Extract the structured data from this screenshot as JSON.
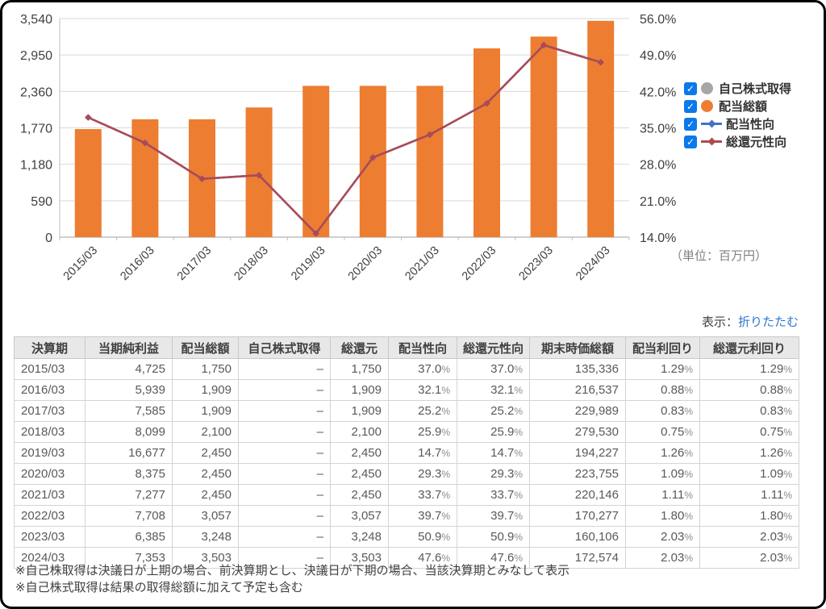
{
  "chart_data": {
    "type": "combo",
    "categories": [
      "2015/03",
      "2016/03",
      "2017/03",
      "2018/03",
      "2019/03",
      "2020/03",
      "2021/03",
      "2022/03",
      "2023/03",
      "2024/03"
    ],
    "series": [
      {
        "name": "自己株式取得",
        "type": "bar",
        "color": "#A6A6A6",
        "values": [
          null,
          null,
          null,
          null,
          null,
          null,
          null,
          null,
          null,
          null
        ]
      },
      {
        "name": "配当総額",
        "type": "bar",
        "color": "#ED7D31",
        "values": [
          1750,
          1909,
          1909,
          2100,
          2450,
          2450,
          2450,
          3057,
          3248,
          3503
        ]
      },
      {
        "name": "配当性向",
        "type": "line",
        "color": "#4472C4",
        "values": [
          37.0,
          32.1,
          25.2,
          25.9,
          14.7,
          29.3,
          33.7,
          39.7,
          50.9,
          47.6
        ]
      },
      {
        "name": "総還元性向",
        "type": "line",
        "color": "#AC4A55",
        "values": [
          37.0,
          32.1,
          25.2,
          25.9,
          14.7,
          29.3,
          33.7,
          39.7,
          50.9,
          47.6
        ]
      }
    ],
    "left_axis": {
      "min": 0,
      "max": 3540,
      "ticks": [
        "0",
        "590",
        "1,180",
        "1,770",
        "2,360",
        "2,950",
        "3,540"
      ]
    },
    "right_axis": {
      "min": 14,
      "max": 56,
      "ticks": [
        "14.0%",
        "21.0%",
        "28.0%",
        "35.0%",
        "42.0%",
        "49.0%",
        "56.0%"
      ]
    },
    "unit": "（単位：百万円）",
    "grid": true,
    "legend_position": "right"
  },
  "legend": {
    "items": [
      {
        "label": "自己株式取得",
        "symbol": "circle",
        "color": "#A6A6A6",
        "checked": true
      },
      {
        "label": "配当総額",
        "symbol": "circle",
        "color": "#ED7D31",
        "checked": true
      },
      {
        "label": "配当性向",
        "symbol": "line",
        "color": "#4472C4",
        "checked": true
      },
      {
        "label": "総還元性向",
        "symbol": "line",
        "color": "#B0494F",
        "checked": true
      }
    ],
    "checkbox_color": "#0A79EC",
    "check_glyph": "✓"
  },
  "toolbar": {
    "display_label": "表示：",
    "collapse_link": "折りたたむ"
  },
  "table": {
    "headers": [
      "決算期",
      "当期純利益",
      "配当総額",
      "自己株式取得",
      "総還元",
      "配当性向",
      "総還元性向",
      "期末時価総額",
      "配当利回り",
      "総還元利回り"
    ],
    "rows": [
      [
        "2015/03",
        "4,725",
        "1,750",
        "–",
        "1,750",
        "37.0%",
        "37.0%",
        "135,336",
        "1.29%",
        "1.29%"
      ],
      [
        "2016/03",
        "5,939",
        "1,909",
        "–",
        "1,909",
        "32.1%",
        "32.1%",
        "216,537",
        "0.88%",
        "0.88%"
      ],
      [
        "2017/03",
        "7,585",
        "1,909",
        "–",
        "1,909",
        "25.2%",
        "25.2%",
        "229,989",
        "0.83%",
        "0.83%"
      ],
      [
        "2018/03",
        "8,099",
        "2,100",
        "–",
        "2,100",
        "25.9%",
        "25.9%",
        "279,530",
        "0.75%",
        "0.75%"
      ],
      [
        "2019/03",
        "16,677",
        "2,450",
        "–",
        "2,450",
        "14.7%",
        "14.7%",
        "194,227",
        "1.26%",
        "1.26%"
      ],
      [
        "2020/03",
        "8,375",
        "2,450",
        "–",
        "2,450",
        "29.3%",
        "29.3%",
        "223,755",
        "1.09%",
        "1.09%"
      ],
      [
        "2021/03",
        "7,277",
        "2,450",
        "–",
        "2,450",
        "33.7%",
        "33.7%",
        "220,146",
        "1.11%",
        "1.11%"
      ],
      [
        "2022/03",
        "7,708",
        "3,057",
        "–",
        "3,057",
        "39.7%",
        "39.7%",
        "170,277",
        "1.80%",
        "1.80%"
      ],
      [
        "2023/03",
        "6,385",
        "3,248",
        "–",
        "3,248",
        "50.9%",
        "50.9%",
        "160,106",
        "2.03%",
        "2.03%"
      ],
      [
        "2024/03",
        "7,353",
        "3,503",
        "–",
        "3,503",
        "47.6%",
        "47.6%",
        "172,574",
        "2.03%",
        "2.03%"
      ]
    ]
  },
  "footnotes": [
    "※自己株取得は決議日が上期の場合、前決算期とし、決議日が下期の場合、当該決算期とみなして表示",
    "※自己株式取得は結果の取得総額に加えて予定も含む"
  ]
}
